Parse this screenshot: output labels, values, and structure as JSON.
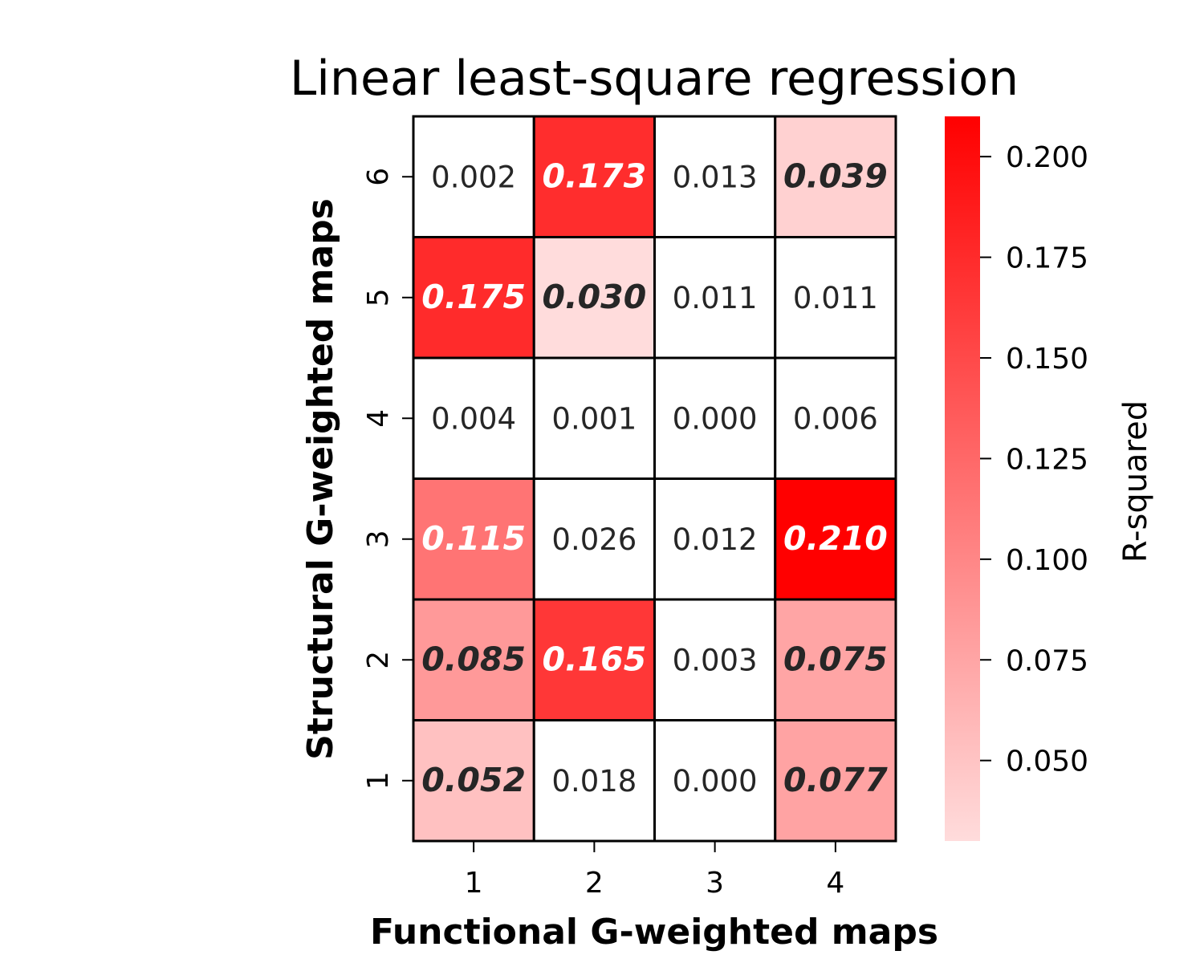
{
  "chart_data": {
    "type": "heatmap",
    "title": "Linear least-square regression",
    "xlabel": "Functional G-weighted maps",
    "ylabel": "Structural G-weighted maps",
    "x_categories": [
      "1",
      "2",
      "3",
      "4"
    ],
    "y_categories": [
      "6",
      "5",
      "4",
      "3",
      "2",
      "1"
    ],
    "values": [
      [
        0.002,
        0.173,
        0.013,
        0.039
      ],
      [
        0.175,
        0.03,
        0.011,
        0.011
      ],
      [
        0.004,
        0.001,
        0.0,
        0.006
      ],
      [
        0.115,
        0.026,
        0.012,
        0.21
      ],
      [
        0.085,
        0.165,
        0.003,
        0.075
      ],
      [
        0.052,
        0.018,
        0.0,
        0.077
      ]
    ],
    "labels": [
      [
        "0.002",
        "0.173",
        "0.013",
        "0.039"
      ],
      [
        "0.175",
        "0.030",
        "0.011",
        "0.011"
      ],
      [
        "0.004",
        "0.001",
        "0.000",
        "0.006"
      ],
      [
        "0.115",
        "0.026",
        "0.012",
        "0.210"
      ],
      [
        "0.085",
        "0.165",
        "0.003",
        "0.075"
      ],
      [
        "0.052",
        "0.018",
        "0.000",
        "0.077"
      ]
    ],
    "highlighted": [
      [
        false,
        true,
        false,
        true
      ],
      [
        true,
        true,
        false,
        false
      ],
      [
        false,
        false,
        false,
        false
      ],
      [
        true,
        false,
        false,
        true
      ],
      [
        true,
        true,
        false,
        true
      ],
      [
        true,
        false,
        false,
        true
      ]
    ],
    "colorbar": {
      "label": "R-squared",
      "range": [
        0.03,
        0.21
      ],
      "ticks": [
        0.05,
        0.075,
        0.1,
        0.125,
        0.15,
        0.175,
        0.2
      ],
      "tick_labels": [
        "0.050",
        "0.075",
        "0.100",
        "0.125",
        "0.150",
        "0.175",
        "0.200"
      ],
      "color_low": "#ffdcdc",
      "color_high": "#ff0000"
    },
    "colors": {
      "unhighlighted_cell": "#ffffff",
      "cell_border": "#000000",
      "dark_label": "#262626",
      "light_label": "#ffffff"
    }
  }
}
